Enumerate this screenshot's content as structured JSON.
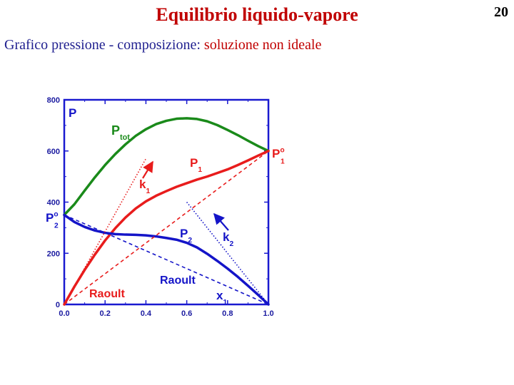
{
  "slide": {
    "title": "Equilibrio liquido-vapore",
    "number": "20",
    "subtitle_main": "Grafico pressione - composizione: ",
    "subtitle_highlight": "soluzione non ideale"
  },
  "colors": {
    "title": "#c00000",
    "subtitle": "#1f1f8f",
    "frame": "#1a1ad0",
    "total": "#1a8a1a",
    "comp1": "#e81c1c",
    "comp2": "#1414c8",
    "tick_text": "#1a1aa0"
  },
  "chart_data": {
    "type": "line",
    "xlim": [
      0,
      1
    ],
    "ylim": [
      0,
      800
    ],
    "xticks": [
      0.0,
      0.2,
      0.4,
      0.6,
      0.8,
      1.0
    ],
    "xtick_labels": [
      "0.0",
      "0.2",
      "0.4",
      "0.6",
      "0.8",
      "1.0"
    ],
    "yticks": [
      0,
      200,
      400,
      600,
      800
    ],
    "ytick_labels": [
      "0",
      "200",
      "400",
      "600",
      "800"
    ],
    "y_axis_label": "P",
    "x_axis_label": {
      "main": "x",
      "sub": "1"
    },
    "series": [
      {
        "key": "ptot",
        "style": "solid",
        "x": [
          0.0,
          0.05,
          0.1,
          0.15,
          0.2,
          0.25,
          0.3,
          0.35,
          0.4,
          0.45,
          0.5,
          0.55,
          0.6,
          0.65,
          0.7,
          0.75,
          0.8,
          0.85,
          0.9,
          0.95,
          1.0
        ],
        "y": [
          350,
          392,
          445,
          497,
          545,
          588,
          626,
          659,
          685,
          705,
          718,
          726,
          728,
          725,
          716,
          701,
          682,
          662,
          640,
          619,
          600
        ]
      },
      {
        "key": "p1",
        "style": "solid",
        "x": [
          0.0,
          0.05,
          0.1,
          0.15,
          0.2,
          0.25,
          0.3,
          0.35,
          0.4,
          0.45,
          0.5,
          0.55,
          0.6,
          0.65,
          0.7,
          0.75,
          0.8,
          0.85,
          0.9,
          0.95,
          1.0
        ],
        "y": [
          0,
          70,
          135,
          195,
          250,
          298,
          340,
          375,
          403,
          425,
          443,
          460,
          474,
          488,
          500,
          514,
          528,
          545,
          563,
          582,
          600
        ]
      },
      {
        "key": "p2",
        "style": "solid",
        "x": [
          0.0,
          0.05,
          0.1,
          0.15,
          0.2,
          0.25,
          0.3,
          0.35,
          0.4,
          0.45,
          0.5,
          0.55,
          0.6,
          0.65,
          0.7,
          0.75,
          0.8,
          0.85,
          0.9,
          0.95,
          1.0
        ],
        "y": [
          350,
          322,
          303,
          289,
          280,
          275,
          273,
          272,
          270,
          266,
          260,
          253,
          241,
          223,
          198,
          170,
          140,
          108,
          73,
          37,
          0
        ]
      },
      {
        "key": "k1",
        "style": "dotted",
        "x": [
          0.0,
          0.4
        ],
        "y": [
          0,
          570
        ]
      },
      {
        "key": "k2",
        "style": "dotted",
        "x": [
          0.6,
          1.0
        ],
        "y": [
          400,
          0
        ]
      },
      {
        "key": "raoult1",
        "style": "dashed",
        "x": [
          0.0,
          1.0
        ],
        "y": [
          0,
          600
        ]
      },
      {
        "key": "raoult2",
        "style": "dashed",
        "x": [
          0.0,
          1.0
        ],
        "y": [
          350,
          0
        ]
      }
    ],
    "annotations": {
      "ptot": {
        "main": "P",
        "sub": "tot"
      },
      "p1": {
        "main": "P",
        "sub": "1"
      },
      "p2": {
        "main": "P",
        "sub": "2"
      },
      "k1": {
        "main": "k",
        "sub": "1"
      },
      "k2": {
        "main": "k",
        "sub": "2"
      },
      "p1_pure": {
        "main": "P",
        "sup": "o",
        "sub": "1"
      },
      "p2_pure": {
        "main": "P",
        "sup": "o",
        "sub": "2"
      },
      "raoult_red": "Raoult",
      "raoult_blue": "Raoult"
    }
  }
}
